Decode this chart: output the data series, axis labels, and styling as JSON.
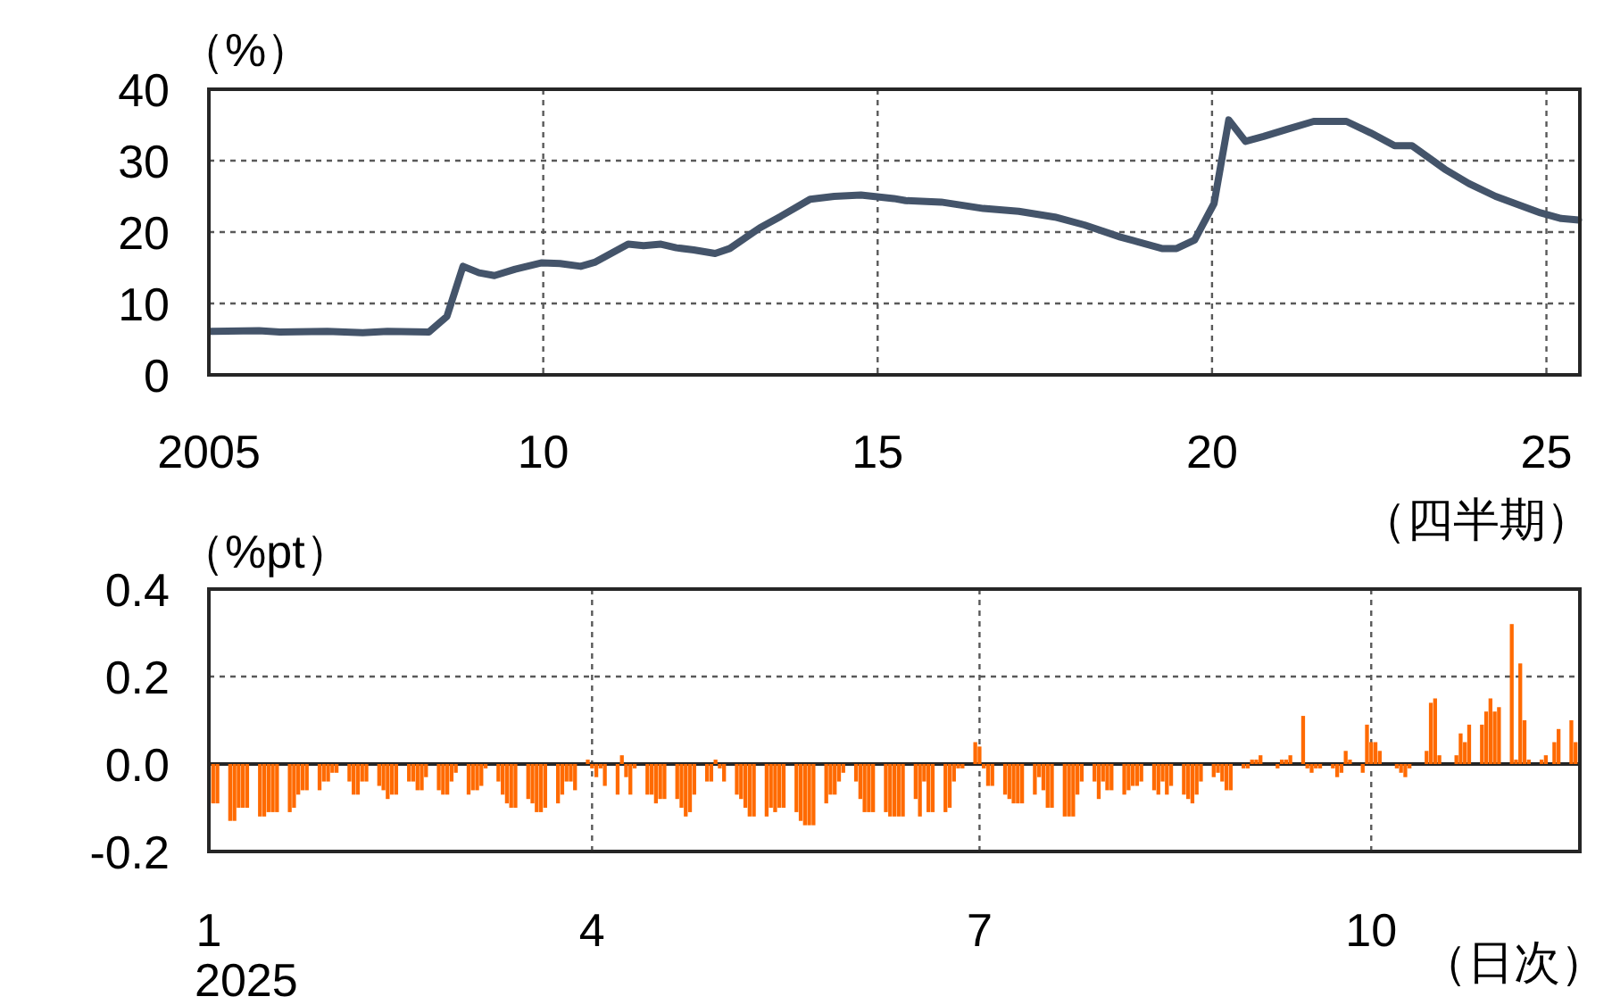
{
  "chart_data": [
    {
      "type": "line",
      "ylabel": "（%）",
      "xlabel": "（四半期）",
      "xlim": [
        2005,
        2025.5
      ],
      "ylim": [
        0,
        40
      ],
      "grid": true,
      "xticks": [
        {
          "value": 2005,
          "label": "2005"
        },
        {
          "value": 2010,
          "label": "10"
        },
        {
          "value": 2015,
          "label": "15"
        },
        {
          "value": 2020,
          "label": "20"
        },
        {
          "value": 2025,
          "label": "25"
        }
      ],
      "yticks": [
        0,
        10,
        20,
        30,
        40
      ],
      "x": [
        2005.03,
        2005.75,
        2006.06,
        2006.77,
        2007.3,
        2007.67,
        2008.29,
        2008.56,
        2008.8,
        2009.04,
        2009.27,
        2009.58,
        2009.98,
        2010.25,
        2010.56,
        2010.78,
        2011.27,
        2011.5,
        2011.76,
        2011.99,
        2012.25,
        2012.57,
        2012.79,
        2013.24,
        2013.55,
        2013.99,
        2014.35,
        2014.75,
        2015.24,
        2015.42,
        2015.95,
        2016.58,
        2017.11,
        2017.65,
        2018.09,
        2018.63,
        2019.25,
        2019.47,
        2019.74,
        2020.03,
        2020.25,
        2020.5,
        2020.77,
        2021.12,
        2021.52,
        2022.01,
        2022.37,
        2022.73,
        2022.99,
        2023.48,
        2023.84,
        2024.24,
        2024.91,
        2025.22,
        2025.48
      ],
      "series": [
        {
          "color": "#44546a",
          "values": [
            6.1,
            6.2,
            6.0,
            6.1,
            5.9,
            6.1,
            6.0,
            8.2,
            15.2,
            14.3,
            13.9,
            14.8,
            15.7,
            15.6,
            15.2,
            15.8,
            18.3,
            18.1,
            18.3,
            17.8,
            17.5,
            17.0,
            17.7,
            20.6,
            22.2,
            24.6,
            25.0,
            25.2,
            24.7,
            24.4,
            24.2,
            23.3,
            22.9,
            22.1,
            21.0,
            19.3,
            17.7,
            17.7,
            18.9,
            24.0,
            35.7,
            32.7,
            33.4,
            34.4,
            35.5,
            35.5,
            33.9,
            32.1,
            32.1,
            28.8,
            26.8,
            25.0,
            22.7,
            21.9,
            21.7
          ]
        }
      ]
    },
    {
      "type": "bar",
      "ylabel": "（%pt）",
      "xlabel": "（日次）",
      "annotations": [
        "2025"
      ],
      "xlim": [
        "2025-01-01",
        "2025-11-19"
      ],
      "ylim": [
        -0.2,
        0.4
      ],
      "grid": true,
      "xticks": [
        {
          "value": "2025-01-01",
          "label": "1"
        },
        {
          "value": "2025-04-01",
          "label": "4"
        },
        {
          "value": "2025-07-01",
          "label": "7"
        },
        {
          "value": "2025-10-01",
          "label": "10"
        }
      ],
      "yticks": [
        -0.2,
        {
          "value": 0,
          "label": "0.0"
        },
        0.2,
        0.4
      ],
      "x": [
        "2025-01-02",
        "2025-01-03",
        "2025-01-06",
        "2025-01-07",
        "2025-01-08",
        "2025-01-09",
        "2025-01-10",
        "2025-01-13",
        "2025-01-14",
        "2025-01-15",
        "2025-01-16",
        "2025-01-17",
        "2025-01-20",
        "2025-01-21",
        "2025-01-22",
        "2025-01-23",
        "2025-01-24",
        "2025-01-27",
        "2025-01-28",
        "2025-01-29",
        "2025-01-30",
        "2025-01-31",
        "2025-02-03",
        "2025-02-04",
        "2025-02-05",
        "2025-02-06",
        "2025-02-07",
        "2025-02-10",
        "2025-02-11",
        "2025-02-12",
        "2025-02-13",
        "2025-02-14",
        "2025-02-17",
        "2025-02-18",
        "2025-02-19",
        "2025-02-20",
        "2025-02-21",
        "2025-02-24",
        "2025-02-25",
        "2025-02-26",
        "2025-02-27",
        "2025-02-28",
        "2025-03-03",
        "2025-03-04",
        "2025-03-05",
        "2025-03-06",
        "2025-03-07",
        "2025-03-10",
        "2025-03-11",
        "2025-03-12",
        "2025-03-13",
        "2025-03-14",
        "2025-03-17",
        "2025-03-18",
        "2025-03-19",
        "2025-03-20",
        "2025-03-21",
        "2025-03-24",
        "2025-03-25",
        "2025-03-26",
        "2025-03-27",
        "2025-03-28",
        "2025-03-31",
        "2025-04-01",
        "2025-04-02",
        "2025-04-03",
        "2025-04-04",
        "2025-04-07",
        "2025-04-08",
        "2025-04-09",
        "2025-04-10",
        "2025-04-11",
        "2025-04-14",
        "2025-04-15",
        "2025-04-16",
        "2025-04-17",
        "2025-04-18",
        "2025-04-21",
        "2025-04-22",
        "2025-04-23",
        "2025-04-24",
        "2025-04-25",
        "2025-04-28",
        "2025-04-29",
        "2025-04-30",
        "2025-05-01",
        "2025-05-02",
        "2025-05-05",
        "2025-05-06",
        "2025-05-07",
        "2025-05-08",
        "2025-05-09",
        "2025-05-12",
        "2025-05-13",
        "2025-05-14",
        "2025-05-15",
        "2025-05-16",
        "2025-05-19",
        "2025-05-20",
        "2025-05-21",
        "2025-05-22",
        "2025-05-23",
        "2025-05-26",
        "2025-05-27",
        "2025-05-28",
        "2025-05-29",
        "2025-05-30",
        "2025-06-02",
        "2025-06-03",
        "2025-06-04",
        "2025-06-05",
        "2025-06-06",
        "2025-06-09",
        "2025-06-10",
        "2025-06-11",
        "2025-06-12",
        "2025-06-13",
        "2025-06-16",
        "2025-06-17",
        "2025-06-18",
        "2025-06-19",
        "2025-06-20",
        "2025-06-23",
        "2025-06-24",
        "2025-06-25",
        "2025-06-26",
        "2025-06-27",
        "2025-06-30",
        "2025-07-01",
        "2025-07-02",
        "2025-07-03",
        "2025-07-04",
        "2025-07-07",
        "2025-07-08",
        "2025-07-09",
        "2025-07-10",
        "2025-07-11",
        "2025-07-14",
        "2025-07-15",
        "2025-07-16",
        "2025-07-17",
        "2025-07-18",
        "2025-07-21",
        "2025-07-22",
        "2025-07-23",
        "2025-07-24",
        "2025-07-25",
        "2025-07-28",
        "2025-07-29",
        "2025-07-30",
        "2025-07-31",
        "2025-08-01",
        "2025-08-04",
        "2025-08-05",
        "2025-08-06",
        "2025-08-07",
        "2025-08-08",
        "2025-08-11",
        "2025-08-12",
        "2025-08-13",
        "2025-08-14",
        "2025-08-15",
        "2025-08-18",
        "2025-08-19",
        "2025-08-20",
        "2025-08-21",
        "2025-08-22",
        "2025-08-25",
        "2025-08-26",
        "2025-08-27",
        "2025-08-28",
        "2025-08-29",
        "2025-09-01",
        "2025-09-02",
        "2025-09-03",
        "2025-09-04",
        "2025-09-05",
        "2025-09-08",
        "2025-09-09",
        "2025-09-10",
        "2025-09-11",
        "2025-09-12",
        "2025-09-15",
        "2025-09-16",
        "2025-09-17",
        "2025-09-18",
        "2025-09-19",
        "2025-09-22",
        "2025-09-23",
        "2025-09-24",
        "2025-09-25",
        "2025-09-26",
        "2025-09-29",
        "2025-09-30",
        "2025-10-01",
        "2025-10-02",
        "2025-10-03",
        "2025-10-06",
        "2025-10-07",
        "2025-10-08",
        "2025-10-09",
        "2025-10-10",
        "2025-10-13",
        "2025-10-14",
        "2025-10-15",
        "2025-10-16",
        "2025-10-17",
        "2025-10-20",
        "2025-10-21",
        "2025-10-22",
        "2025-10-23",
        "2025-10-24",
        "2025-10-27",
        "2025-10-28",
        "2025-10-29",
        "2025-10-30",
        "2025-10-31",
        "2025-11-03",
        "2025-11-04",
        "2025-11-05",
        "2025-11-06",
        "2025-11-07",
        "2025-11-10",
        "2025-11-11",
        "2025-11-12",
        "2025-11-13",
        "2025-11-14",
        "2025-11-17",
        "2025-11-18"
      ],
      "series": [
        {
          "color": "#ff6a00",
          "values": [
            -0.09,
            -0.09,
            -0.13,
            -0.13,
            -0.1,
            -0.1,
            -0.1,
            -0.12,
            -0.12,
            -0.11,
            -0.11,
            -0.11,
            -0.11,
            -0.1,
            -0.07,
            -0.06,
            -0.06,
            -0.06,
            -0.04,
            -0.04,
            -0.02,
            -0.02,
            -0.04,
            -0.07,
            -0.07,
            -0.04,
            -0.04,
            -0.05,
            -0.06,
            -0.08,
            -0.07,
            -0.07,
            -0.04,
            -0.04,
            -0.06,
            -0.06,
            -0.03,
            -0.06,
            -0.07,
            -0.07,
            -0.04,
            -0.02,
            -0.07,
            -0.06,
            -0.06,
            -0.05,
            -0.01,
            -0.04,
            -0.07,
            -0.09,
            -0.1,
            -0.1,
            -0.08,
            -0.09,
            -0.11,
            -0.11,
            -0.1,
            -0.09,
            -0.07,
            -0.04,
            -0.04,
            -0.06,
            0.01,
            -0.01,
            -0.03,
            -0.01,
            -0.05,
            -0.07,
            0.02,
            -0.03,
            -0.07,
            -0.01,
            -0.07,
            -0.07,
            -0.09,
            -0.08,
            -0.08,
            -0.08,
            -0.1,
            -0.12,
            -0.11,
            -0.07,
            -0.04,
            -0.04,
            0.01,
            -0.01,
            -0.04,
            -0.07,
            -0.08,
            -0.1,
            -0.12,
            -0.12,
            -0.12,
            -0.1,
            -0.11,
            -0.1,
            -0.1,
            -0.11,
            -0.13,
            -0.14,
            -0.14,
            -0.14,
            -0.09,
            -0.07,
            -0.07,
            -0.04,
            -0.02,
            -0.04,
            -0.08,
            -0.11,
            -0.11,
            -0.11,
            -0.11,
            -0.12,
            -0.12,
            -0.12,
            -0.12,
            -0.08,
            -0.12,
            -0.04,
            -0.11,
            -0.11,
            -0.11,
            -0.1,
            -0.04,
            -0.01,
            -0.01,
            0.05,
            0.04,
            -0.01,
            -0.05,
            -0.05,
            -0.07,
            -0.08,
            -0.09,
            -0.09,
            -0.09,
            -0.07,
            -0.03,
            -0.06,
            -0.1,
            -0.1,
            -0.12,
            -0.12,
            -0.12,
            -0.07,
            -0.04,
            -0.04,
            -0.08,
            -0.04,
            -0.06,
            -0.06,
            -0.07,
            -0.06,
            -0.05,
            -0.05,
            -0.04,
            -0.06,
            -0.07,
            -0.04,
            -0.07,
            -0.05,
            -0.07,
            -0.08,
            -0.09,
            -0.07,
            -0.04,
            -0.03,
            -0.02,
            -0.04,
            -0.06,
            -0.06,
            -0.01,
            -0.01,
            0.01,
            0.01,
            0.02,
            0.0,
            -0.01,
            0.01,
            0.01,
            0.02,
            0.11,
            -0.01,
            -0.02,
            -0.01,
            -0.01,
            -0.01,
            -0.03,
            -0.02,
            0.03,
            0.01,
            -0.02,
            0.09,
            0.05,
            0.05,
            0.03,
            0.0,
            -0.01,
            -0.02,
            -0.03,
            -0.01,
            0.0,
            0.03,
            0.14,
            0.15,
            0.02,
            0.0,
            0.02,
            0.07,
            0.05,
            0.09,
            0.09,
            0.12,
            0.15,
            0.12,
            0.13,
            0.32,
            0.01,
            0.23,
            0.1,
            0.01,
            0.01,
            0.02,
            0.0,
            0.05,
            0.08,
            0.1,
            0.05
          ]
        }
      ]
    }
  ]
}
